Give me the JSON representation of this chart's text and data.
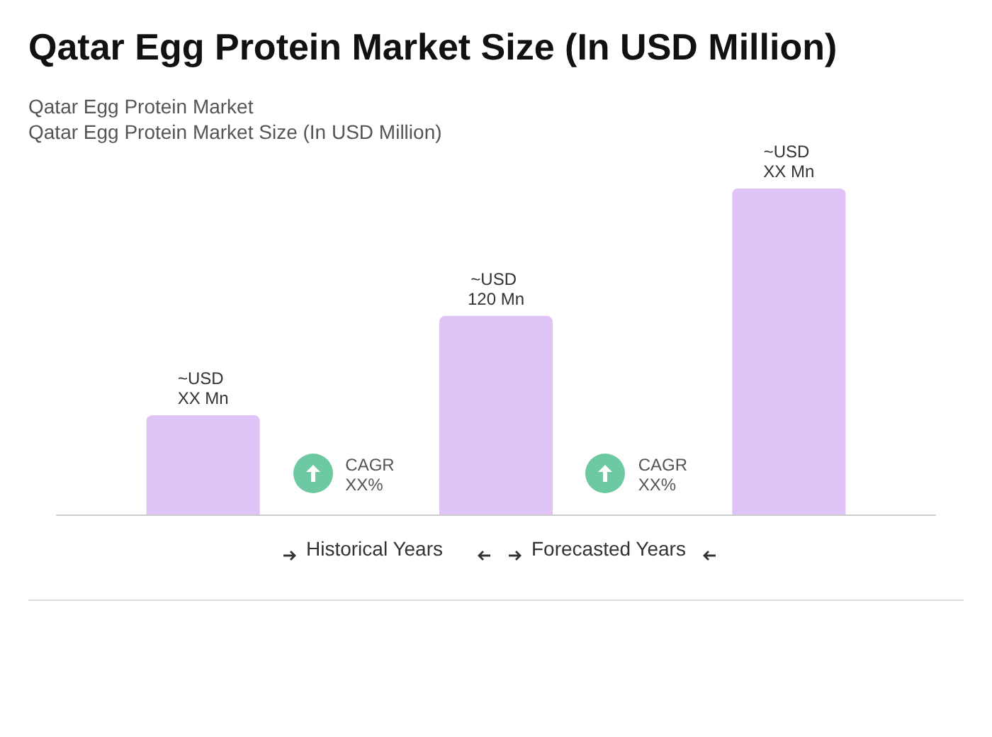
{
  "chart_data": {
    "type": "bar",
    "title": "Qatar Egg Protein Market Size (In USD Million)",
    "subtitle": "Qatar Egg Protein Market\nQatar Egg Protein Market Size (In USD Million)",
    "categories": [
      null,
      null,
      null
    ],
    "values": [
      60,
      120,
      197
    ],
    "value_labels": [
      "~USD XX Mn",
      "~USD 120 Mn",
      "~USD XX Mn"
    ],
    "color": "#dfc3f7",
    "annotations": [
      "CAGR XX%",
      "CAGR XX%",
      "Historical Years",
      "Forecasted Years"
    ]
  }
}
